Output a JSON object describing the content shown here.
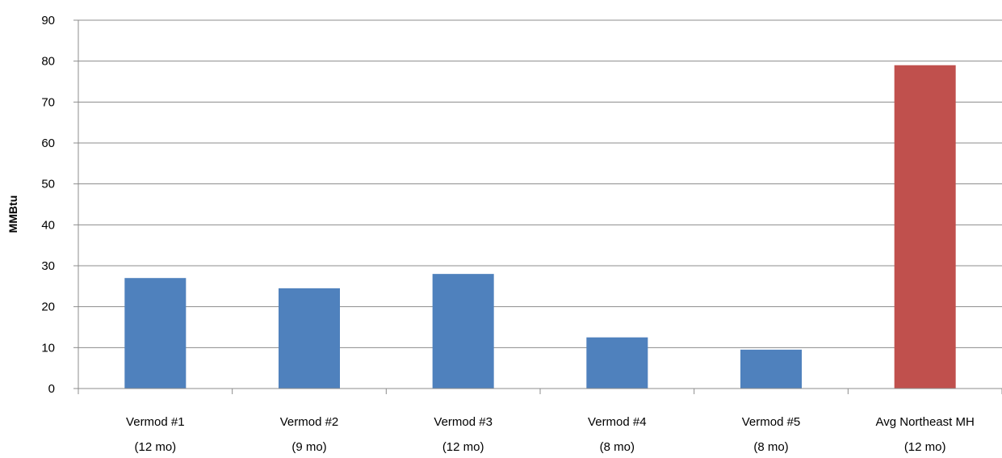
{
  "chart_data": {
    "type": "bar",
    "title": "",
    "xlabel": "",
    "ylabel": "MMBtu",
    "ylim": [
      0,
      90
    ],
    "yticks": [
      0,
      10,
      20,
      30,
      40,
      50,
      60,
      70,
      80,
      90
    ],
    "grid": true,
    "legend": "none",
    "categories": [
      [
        "Vermod #1",
        "(12 mo)"
      ],
      [
        "Vermod #2",
        "(9 mo)"
      ],
      [
        "Vermod #3",
        "(12 mo)"
      ],
      [
        "Vermod #4",
        "(8 mo)"
      ],
      [
        "Vermod #5",
        "(8 mo)"
      ],
      [
        "Avg Northeast MH",
        "(12 mo)"
      ]
    ],
    "values": [
      27,
      24.5,
      28,
      12.5,
      9.5,
      79
    ],
    "bar_colors": [
      "#4f81bd",
      "#4f81bd",
      "#4f81bd",
      "#4f81bd",
      "#4f81bd",
      "#c0504d"
    ],
    "grid_color": "#8c8c8c"
  }
}
